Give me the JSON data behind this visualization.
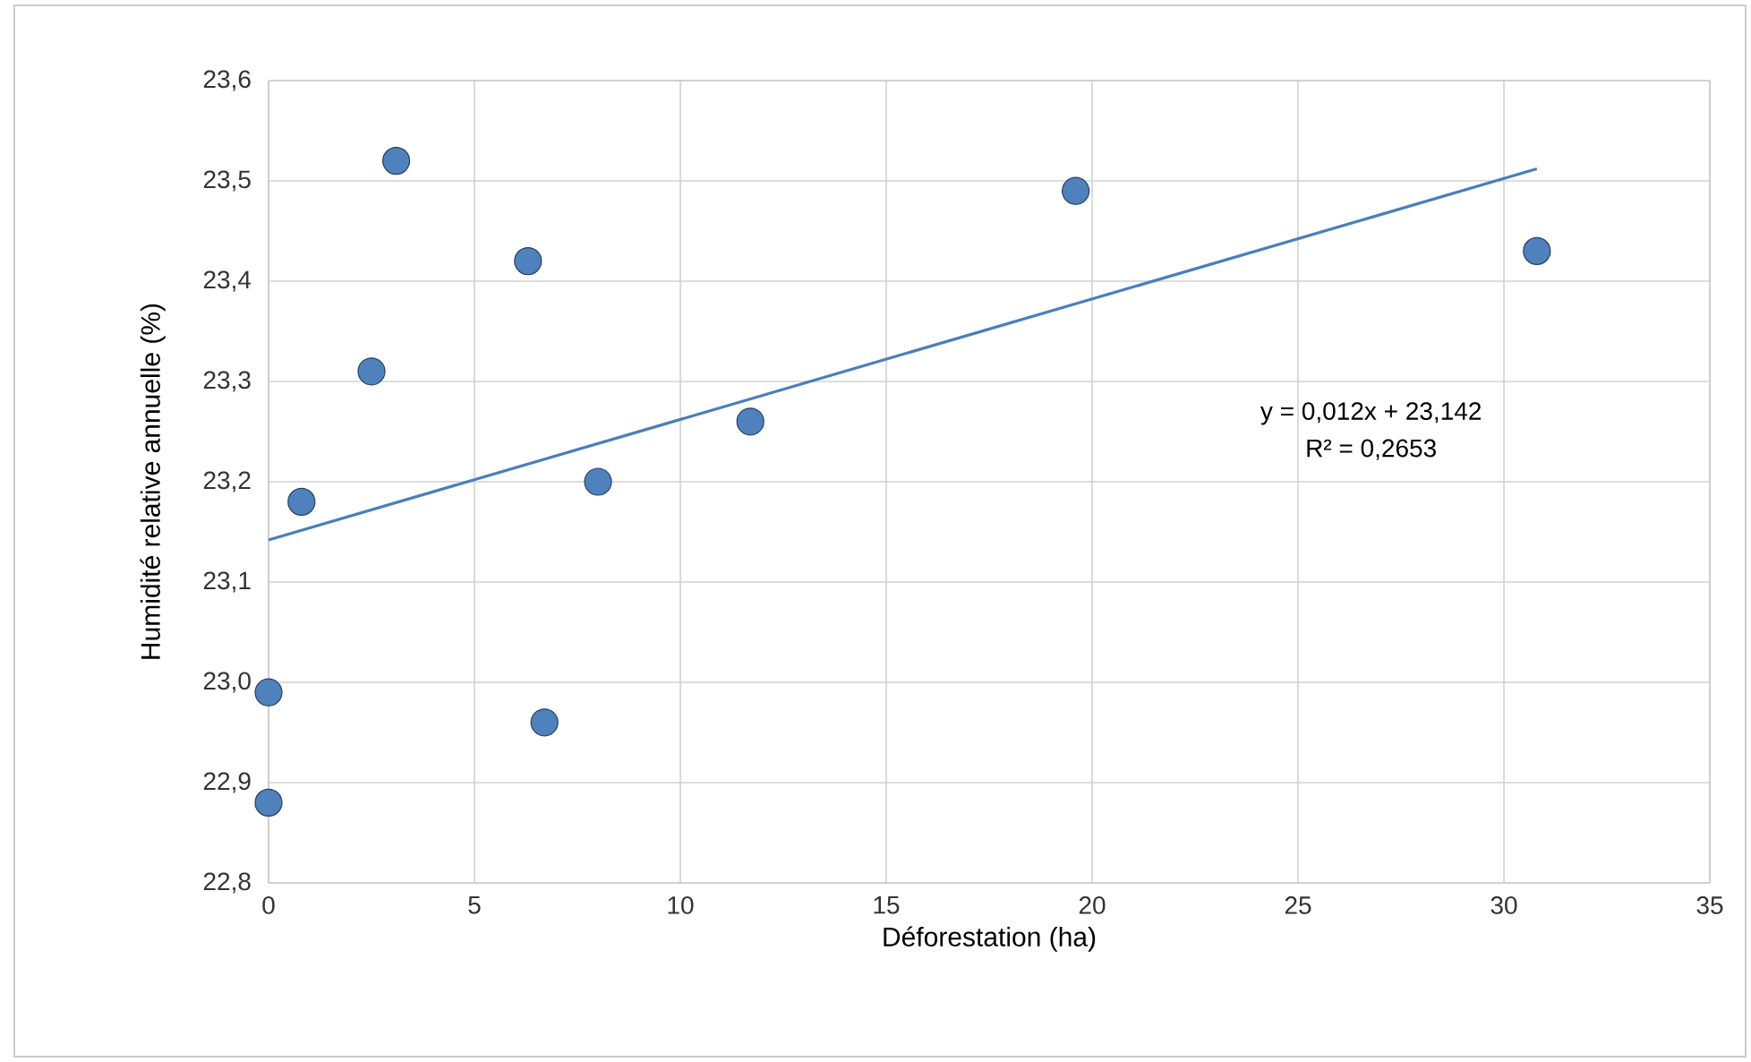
{
  "chart_data": {
    "type": "scatter",
    "xlabel": "Déforestation (ha)",
    "ylabel": "Humidité relative annuelle (%)",
    "series": [
      {
        "color": "#4f81bd",
        "marker": "circle",
        "x": [
          0,
          0,
          0.8,
          2.5,
          3.1,
          6.3,
          6.7,
          8.0,
          11.7,
          19.6,
          30.8
        ],
        "values": [
          22.99,
          22.88,
          23.18,
          23.31,
          23.52,
          23.42,
          22.96,
          23.2,
          23.26,
          23.49,
          23.43
        ]
      },
      {
        "type": "line",
        "marker": "none",
        "color": "#4a7ebb",
        "x": [
          0,
          30.8
        ],
        "values": [
          23.142,
          23.512
        ]
      }
    ],
    "annotations": [
      "y = 0,012x + 23,142",
      "R² = 0,2653"
    ],
    "xlim": [
      0,
      35
    ],
    "xticks": [
      0,
      5,
      10,
      15,
      20,
      25,
      30,
      35
    ],
    "ylim": [
      22.8,
      23.6
    ],
    "yticks": [
      {
        "value": 22.8,
        "label": "22,8"
      },
      {
        "value": 22.9,
        "label": "22,9"
      },
      {
        "value": 23.0,
        "label": "23,0"
      },
      {
        "value": 23.1,
        "label": "23,1"
      },
      {
        "value": 23.2,
        "label": "23,2"
      },
      {
        "value": 23.3,
        "label": "23,3"
      },
      {
        "value": 23.4,
        "label": "23,4"
      },
      {
        "value": 23.5,
        "label": "23,5"
      },
      {
        "value": 23.6,
        "label": "23,6"
      }
    ],
    "grid": true
  }
}
